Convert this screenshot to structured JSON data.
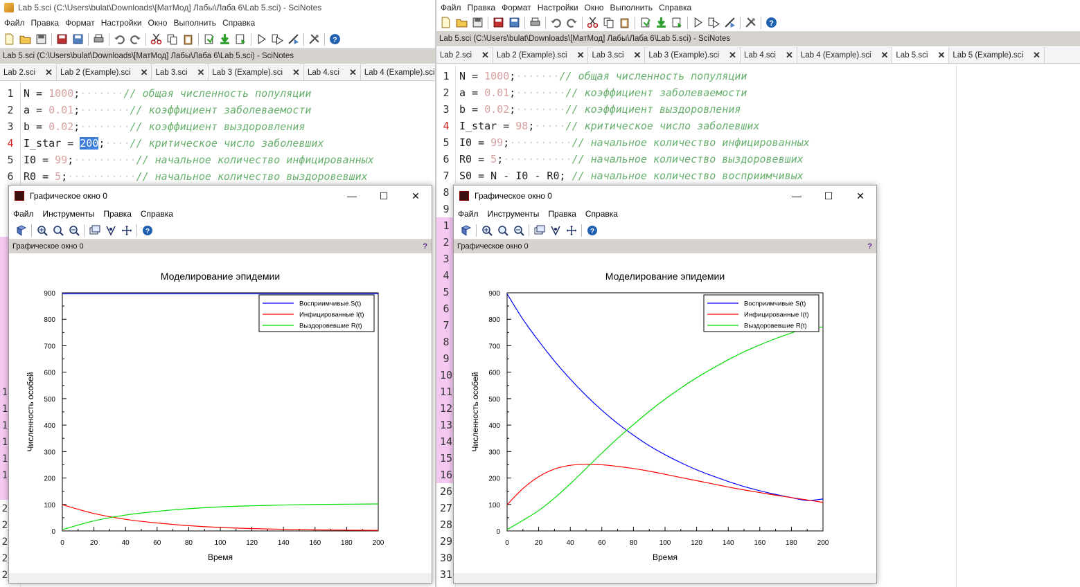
{
  "left": {
    "window_title": "Lab 5.sci (C:\\Users\\bulat\\Downloads\\[МатМод] Лабы\\Лаба 6\\Lab 5.sci) - SciNotes",
    "menu": [
      "Файл",
      "Правка",
      "Формат",
      "Настройки",
      "Окно",
      "Выполнить",
      "Справка"
    ],
    "path": "Lab 5.sci (C:\\Users\\bulat\\Downloads\\[МатМод] Лабы\\Лаба 6\\Lab 5.sci) - SciNotes",
    "tabs": [
      "Lab 2.sci",
      "Lab 2 (Example).sci",
      "Lab 3.sci",
      "Lab 3 (Example).sci",
      "Lab 4.sci",
      "Lab 4 (Example).sci"
    ],
    "line_numbers": [
      "1",
      "2",
      "3",
      "4",
      "5",
      "6"
    ],
    "partial_line_numbers": [
      "1",
      "1",
      "1",
      "1",
      "1",
      "1",
      "2",
      "2",
      "2",
      "2",
      "2",
      "2",
      "3",
      "3"
    ],
    "code": [
      {
        "a": "N = ",
        "n": "1000",
        "b": ";",
        "d": "·······",
        "c": "// общая численность популяции"
      },
      {
        "a": "a = ",
        "n": "0.01",
        "b": ";",
        "d": "········",
        "c": "// коэффициент заболеваемости"
      },
      {
        "a": "b = ",
        "n": "0.02",
        "b": ";",
        "d": "········",
        "c": "// коэффициент выздоровления"
      },
      {
        "a": "I_star = ",
        "n": "200",
        "b": ";",
        "d": "····",
        "c": "// критическое число заболевших"
      },
      {
        "a": "I0 = ",
        "n": "99",
        "b": ";",
        "d": "··········",
        "c": "// начальное количество инфицированных"
      },
      {
        "a": "R0 = ",
        "n": "5",
        "b": ";",
        "d": "···········",
        "c": "// начальное количество выздоровевших"
      }
    ]
  },
  "right": {
    "menu": [
      "Файл",
      "Правка",
      "Формат",
      "Настройки",
      "Окно",
      "Выполнить",
      "Справка"
    ],
    "path": "Lab 5.sci (C:\\Users\\bulat\\Downloads\\[МатМод] Лабы\\Лаба 6\\Lab 5.sci) - SciNotes",
    "tabs": [
      "Lab 2.sci",
      "Lab 2 (Example).sci",
      "Lab 3.sci",
      "Lab 3 (Example).sci",
      "Lab 4.sci",
      "Lab 4 (Example).sci",
      "Lab 5.sci",
      "Lab 5 (Example).sci"
    ],
    "active_tab": "Lab 5.sci",
    "line_numbers": [
      "1",
      "2",
      "3",
      "4",
      "5",
      "6",
      "7",
      "8",
      "9",
      "1",
      "2",
      "3",
      "4",
      "5",
      "6",
      "7",
      "8",
      "9",
      "10",
      "11",
      "12",
      "13",
      "14",
      "15",
      "16",
      "26",
      "27",
      "28",
      "29",
      "30",
      "31"
    ],
    "code": [
      {
        "a": "N = ",
        "n": "1000",
        "b": ";",
        "d": "·······",
        "c": "// общая численность популяции"
      },
      {
        "a": "a = ",
        "n": "0.01",
        "b": ";",
        "d": "········",
        "c": "// коэффициент заболеваемости"
      },
      {
        "a": "b = ",
        "n": "0.02",
        "b": ";",
        "d": "········",
        "c": "// коэффициент выздоровления"
      },
      {
        "a": "I_star = ",
        "n": "98",
        "b": ";",
        "d": "·····",
        "c": "// критическое число заболевших"
      },
      {
        "a": "I0 = ",
        "n": "99",
        "b": ";",
        "d": "··········",
        "c": "// начальное количество инфицированных"
      },
      {
        "a": "R0 = ",
        "n": "5",
        "b": ";",
        "d": "···········",
        "c": "// начальное количество выздоровевших"
      },
      {
        "a": "S0 = N - I0 - R0;",
        "n": "",
        "b": "",
        "d": " ",
        "c": "// начальное количество восприимчивых"
      }
    ]
  },
  "graphic_window": {
    "title": "Графическое окно 0",
    "menu": [
      "Файл",
      "Инструменты",
      "Правка",
      "Справка"
    ],
    "label": "Графическое окно 0",
    "help": "?",
    "controls": [
      "—",
      "☐",
      "✕"
    ]
  },
  "chart_data": [
    {
      "type": "line",
      "title": "Моделирование эпидемии",
      "xlabel": "Время",
      "ylabel": "Численность особей",
      "xlim": [
        0,
        200
      ],
      "ylim": [
        0,
        900
      ],
      "xticks": [
        0,
        20,
        40,
        60,
        80,
        100,
        120,
        140,
        160,
        180,
        200
      ],
      "yticks": [
        0,
        100,
        200,
        300,
        400,
        500,
        600,
        700,
        800,
        900
      ],
      "legend_position": "top-right",
      "series": [
        {
          "name": "Восприимчивые S(t)",
          "color": "#0000ff",
          "x": [
            0,
            20,
            40,
            60,
            80,
            100,
            120,
            140,
            160,
            180,
            200
          ],
          "y": [
            896,
            896,
            896,
            896,
            896,
            896,
            896,
            896,
            896,
            896,
            896
          ]
        },
        {
          "name": "Инфицированные I(t)",
          "color": "#ff0000",
          "x": [
            0,
            20,
            40,
            60,
            80,
            100,
            120,
            140,
            160,
            180,
            200
          ],
          "y": [
            99,
            66,
            44,
            30,
            20,
            13,
            9,
            6,
            4,
            3,
            2
          ]
        },
        {
          "name": "Выздоровевшие R(t)",
          "color": "#00dd00",
          "x": [
            0,
            20,
            40,
            60,
            80,
            100,
            120,
            140,
            160,
            180,
            200
          ],
          "y": [
            5,
            38,
            60,
            74,
            84,
            91,
            95,
            98,
            100,
            101,
            102
          ]
        }
      ]
    },
    {
      "type": "line",
      "title": "Моделирование эпидемии",
      "xlabel": "Время",
      "ylabel": "Численность особей",
      "xlim": [
        0,
        200
      ],
      "ylim": [
        0,
        900
      ],
      "xticks": [
        0,
        20,
        40,
        60,
        80,
        100,
        120,
        140,
        160,
        180,
        200
      ],
      "yticks": [
        0,
        100,
        200,
        300,
        400,
        500,
        600,
        700,
        800,
        900
      ],
      "legend_position": "top-right",
      "series": [
        {
          "name": "Восприимчивые S(t)",
          "color": "#0000ff",
          "x": [
            0,
            10,
            20,
            30,
            40,
            50,
            60,
            70,
            80,
            90,
            100,
            110,
            120,
            130,
            140,
            150,
            160,
            170,
            180,
            190,
            200
          ],
          "y": [
            896,
            800,
            718,
            642,
            574,
            512,
            456,
            406,
            362,
            322,
            288,
            258,
            231,
            208,
            187,
            168,
            152,
            138,
            126,
            115,
            121
          ]
        },
        {
          "name": "Инфицированные I(t)",
          "color": "#ff0000",
          "x": [
            0,
            10,
            20,
            30,
            40,
            50,
            60,
            70,
            80,
            90,
            100,
            110,
            120,
            130,
            140,
            150,
            160,
            170,
            180,
            190,
            200
          ],
          "y": [
            99,
            160,
            205,
            234,
            248,
            252,
            250,
            244,
            236,
            226,
            214,
            202,
            190,
            178,
            166,
            155,
            145,
            135,
            126,
            117,
            108
          ]
        },
        {
          "name": "Выздоровевшие R(t)",
          "color": "#00dd00",
          "x": [
            0,
            10,
            20,
            30,
            40,
            50,
            60,
            70,
            80,
            90,
            100,
            110,
            120,
            130,
            140,
            150,
            160,
            170,
            180,
            190,
            200
          ],
          "y": [
            5,
            40,
            77,
            124,
            178,
            236,
            294,
            350,
            402,
            452,
            498,
            540,
            579,
            614,
            647,
            677,
            703,
            727,
            748,
            767,
            771
          ]
        }
      ]
    }
  ]
}
